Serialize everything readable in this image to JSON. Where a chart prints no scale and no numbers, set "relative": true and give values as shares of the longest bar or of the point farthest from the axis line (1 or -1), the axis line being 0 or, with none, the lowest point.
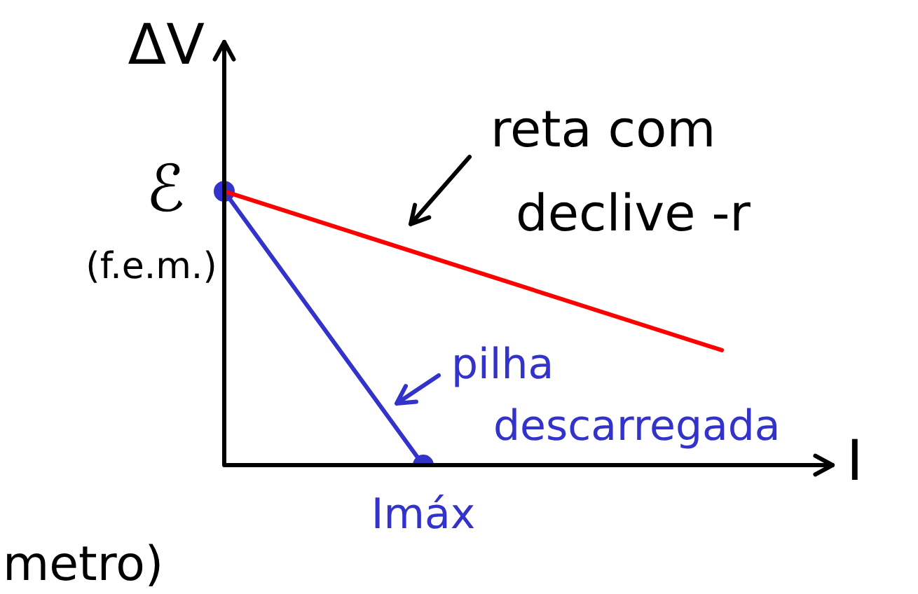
{
  "chart_data": {
    "type": "line",
    "relative": true,
    "xlabel": "I",
    "ylabel": "ΔV",
    "legend": false,
    "line_style": "solid",
    "categories": [
      null,
      null,
      null,
      null,
      null,
      null
    ],
    "series": [
      {
        "color": "#ff0000",
        "values": [
          1,
          null,
          null,
          null,
          null,
          0.42
        ],
        "marker": "none"
      },
      {
        "color": "#3333cc",
        "values": [
          1,
          null,
          0,
          null,
          null,
          null
        ],
        "marker": "circle"
      }
    ],
    "annotations": [
      "ℰ (f.e.m.)",
      "reta com declive -r",
      "pilha descarregada",
      "Imáx",
      "metro)"
    ]
  }
}
